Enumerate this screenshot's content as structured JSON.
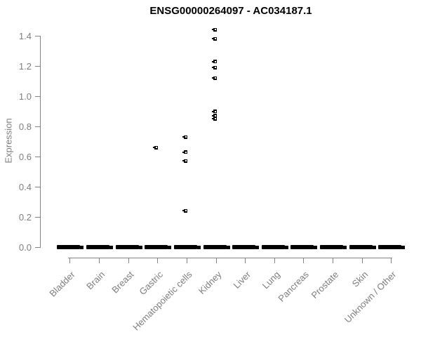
{
  "chart_data": {
    "type": "scatter",
    "title": "ENSG00000264097 - AC034187.1",
    "ylabel": "Expression",
    "xlabel": "",
    "categories": [
      "Bladder",
      "Brain",
      "Breast",
      "Gastric",
      "Hematopoietic cells",
      "Kidney",
      "Liver",
      "Lung",
      "Pancreas",
      "Prostate",
      "Skin",
      "Unknown / Other"
    ],
    "ylim": [
      0,
      1.45
    ],
    "yticks": [
      0.0,
      0.2,
      0.4,
      0.6,
      0.8,
      1.0,
      1.2,
      1.4
    ],
    "ytick_labels": [
      "0.0",
      "0.2",
      "0.4",
      "0.6",
      "0.8",
      "1.0",
      "1.2",
      "1.4"
    ],
    "grid": false,
    "legend": "none",
    "marker": "small-black-square",
    "points": [
      {
        "category": "Gastric",
        "value": 0.66
      },
      {
        "category": "Hematopoietic cells",
        "value": 0.73
      },
      {
        "category": "Hematopoietic cells",
        "value": 0.63
      },
      {
        "category": "Hematopoietic cells",
        "value": 0.57
      },
      {
        "category": "Hematopoietic cells",
        "value": 0.24
      },
      {
        "category": "Kidney",
        "value": 1.44
      },
      {
        "category": "Kidney",
        "value": 1.38
      },
      {
        "category": "Kidney",
        "value": 1.23
      },
      {
        "category": "Kidney",
        "value": 1.19
      },
      {
        "category": "Kidney",
        "value": 1.12
      },
      {
        "category": "Kidney",
        "value": 0.9
      },
      {
        "category": "Kidney",
        "value": 0.87
      },
      {
        "category": "Kidney",
        "value": 0.85
      }
    ],
    "zero_clusters": {
      "description": "Every category shows a dense cluster of samples at expression 0.0, drawn as a thick black horizontal bar on the baseline",
      "categories": [
        "Bladder",
        "Brain",
        "Breast",
        "Gastric",
        "Hematopoietic cells",
        "Kidney",
        "Liver",
        "Lung",
        "Pancreas",
        "Prostate",
        "Skin",
        "Unknown / Other"
      ]
    },
    "colors": {
      "points": "#000000",
      "title": "#000000",
      "axis_lines": "#838383",
      "tick_labels": "#7d7d7d"
    }
  }
}
